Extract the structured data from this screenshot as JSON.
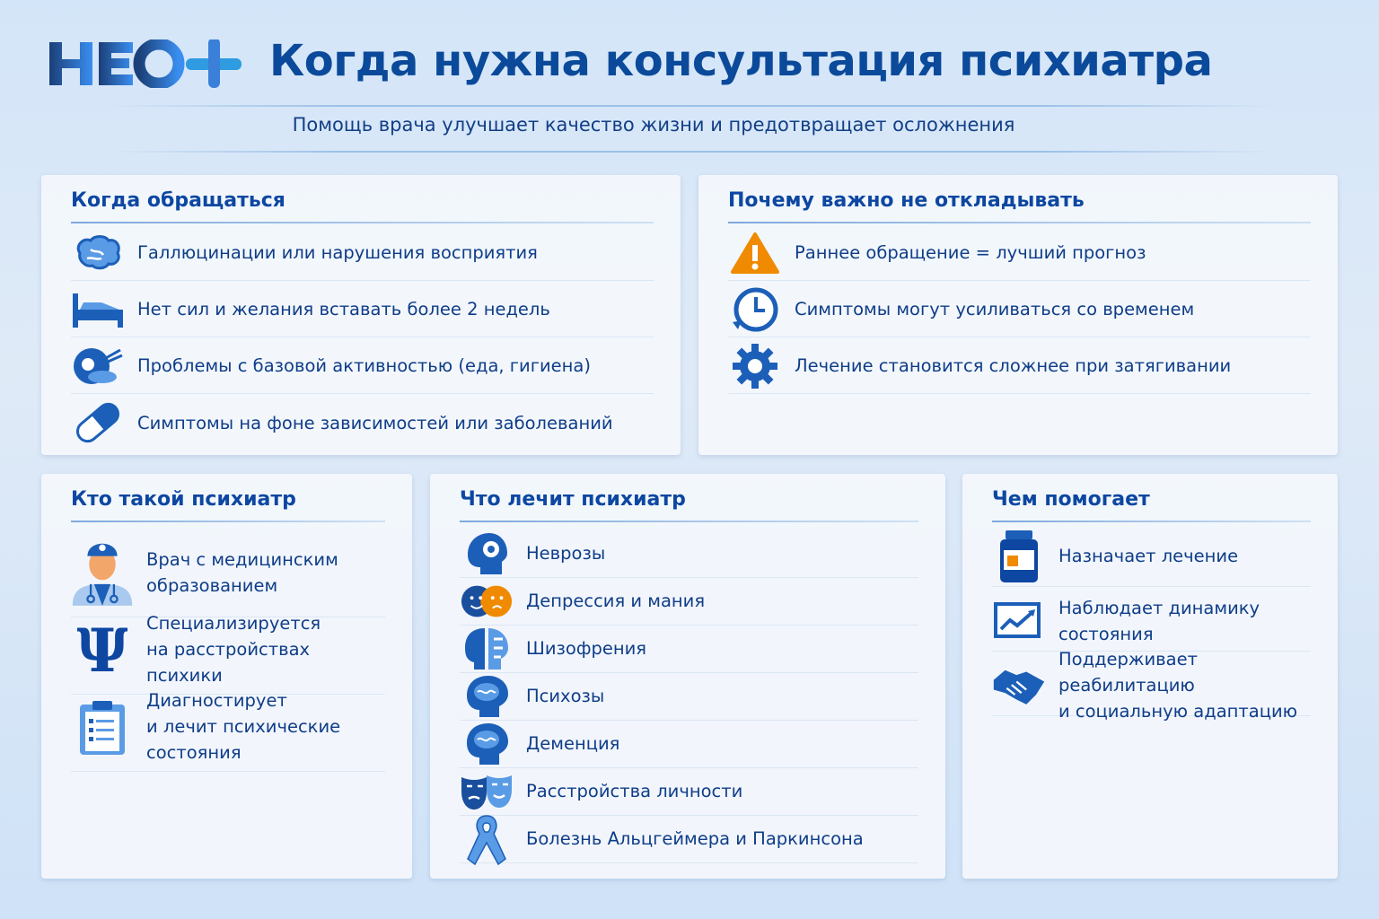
{
  "header": {
    "logo": "НЕО+",
    "title": "Когда нужна консультация психиатра",
    "subtitle": "Помощь врача улучшает качество жизни и предотвращает осложнения"
  },
  "when": {
    "title": "Когда обращаться",
    "items": [
      {
        "icon": "brain-icon",
        "text": "Галлюцинации или нарушения восприятия"
      },
      {
        "icon": "bed-icon",
        "text": "Нет сил и желания вставать более 2 недель"
      },
      {
        "icon": "food-hygiene-icon",
        "text": "Проблемы с базовой активностью (еда, гигиена)"
      },
      {
        "icon": "pill-icon",
        "text": "Симптомы на фоне зависимостей или заболеваний"
      }
    ]
  },
  "why": {
    "title": "Почему важно не откладывать",
    "items": [
      {
        "icon": "warning-icon",
        "text": "Раннее обращение = лучший прогноз"
      },
      {
        "icon": "clock-icon",
        "text": "Симптомы могут усиливаться со временем"
      },
      {
        "icon": "gear-icon",
        "text": "Лечение становится сложнее при затягивании"
      }
    ]
  },
  "who": {
    "title": "Кто такой психиатр",
    "items": [
      {
        "icon": "doctor-icon",
        "text": "Врач с медицинским\nобразованием"
      },
      {
        "icon": "psi-icon",
        "text": "Специализируется\nна расстройствах психики"
      },
      {
        "icon": "clipboard-icon",
        "text": "Диагностирует\nи лечит психические состояния"
      }
    ]
  },
  "treats": {
    "title": "Что лечит психиатр",
    "items": [
      {
        "icon": "head-gear-icon",
        "text": "Неврозы"
      },
      {
        "icon": "mood-faces-icon",
        "text": "Депрессия и мания"
      },
      {
        "icon": "split-head-icon",
        "text": "Шизофрения"
      },
      {
        "icon": "head-brain-icon",
        "text": "Психозы"
      },
      {
        "icon": "head-brain-icon",
        "text": "Деменция"
      },
      {
        "icon": "masks-icon",
        "text": "Расстройства личности"
      },
      {
        "icon": "ribbon-icon",
        "text": "Болезнь Альцгеймера и Паркинсона"
      }
    ]
  },
  "helps": {
    "title": "Чем помогает",
    "items": [
      {
        "icon": "medicine-bottle-icon",
        "text": "Назначает лечение"
      },
      {
        "icon": "chart-icon",
        "text": "Наблюдает динамику состояния"
      },
      {
        "icon": "handshake-icon",
        "text": "Поддерживает реабилитацию\nи социальную адаптацию"
      }
    ]
  },
  "colors": {
    "accent": "#0d47a1",
    "text": "#0f3d88",
    "warning": "#f08a00",
    "background": "#d3e5f8"
  }
}
